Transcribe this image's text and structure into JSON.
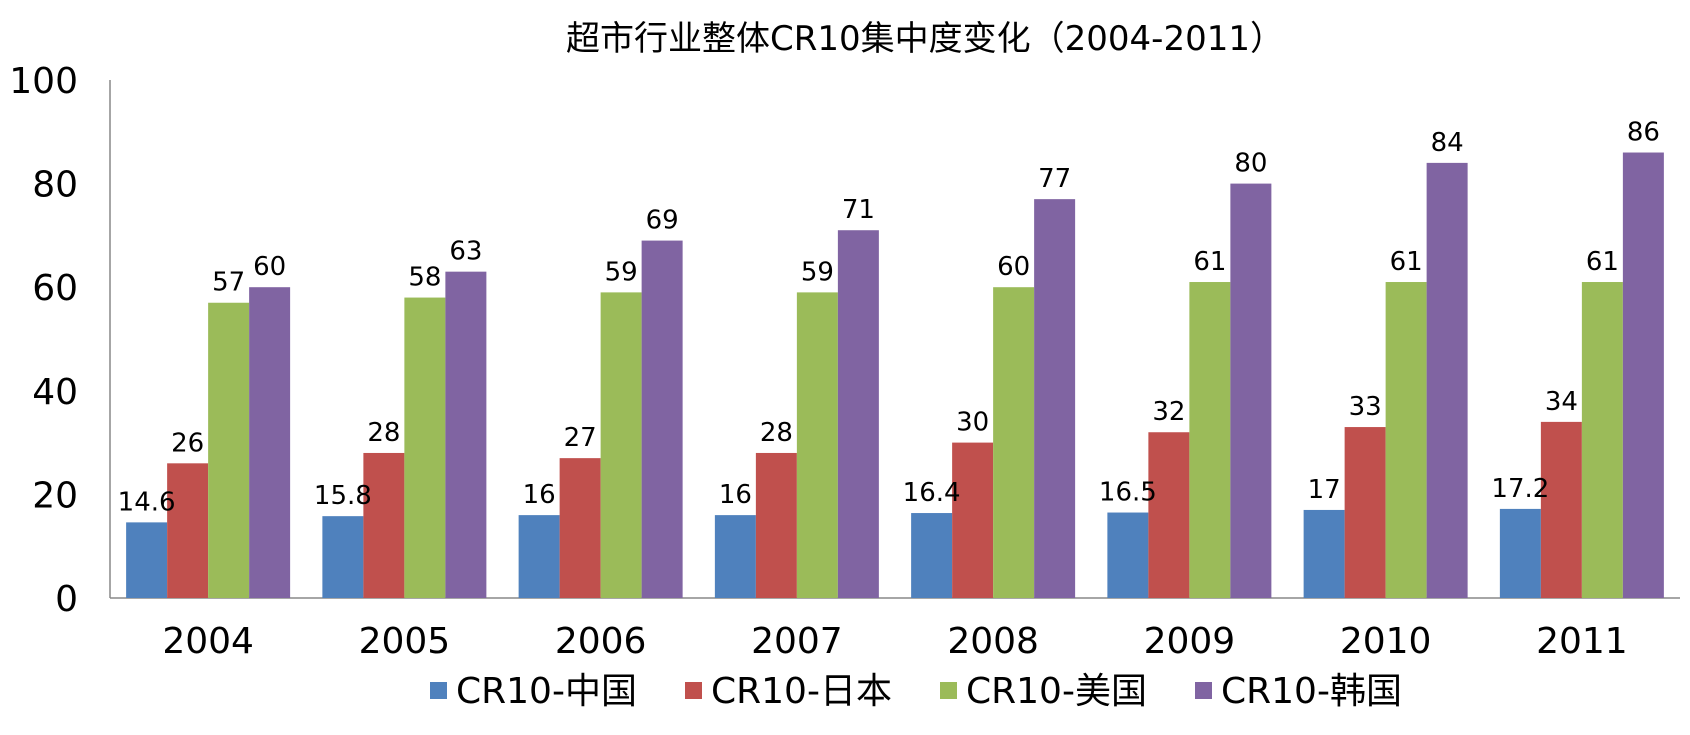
{
  "chart_data": {
    "type": "bar",
    "title": "超市行业整体CR10集中度变化（2004-2011）",
    "xlabel": "",
    "ylabel": "",
    "categories": [
      "2004",
      "2005",
      "2006",
      "2007",
      "2008",
      "2009",
      "2010",
      "2011"
    ],
    "series": [
      {
        "name": "CR10-中国",
        "color": "#4F81BD",
        "values": [
          14.6,
          15.8,
          16,
          16,
          16.4,
          16.5,
          17,
          17.2
        ]
      },
      {
        "name": "CR10-日本",
        "color": "#C0504D",
        "values": [
          26,
          28,
          27,
          28,
          30,
          32,
          33,
          34
        ]
      },
      {
        "name": "CR10-美国",
        "color": "#9BBB59",
        "values": [
          57,
          58,
          59,
          59,
          60,
          61,
          61,
          61
        ]
      },
      {
        "name": "CR10-韩国",
        "color": "#8064A2",
        "values": [
          60,
          63,
          69,
          71,
          77,
          80,
          84,
          86
        ]
      }
    ],
    "ylim": [
      0,
      100
    ],
    "yticks": [
      0,
      20,
      40,
      60,
      80,
      100
    ],
    "grid": false,
    "legend_position": "bottom",
    "data_labels": true
  }
}
